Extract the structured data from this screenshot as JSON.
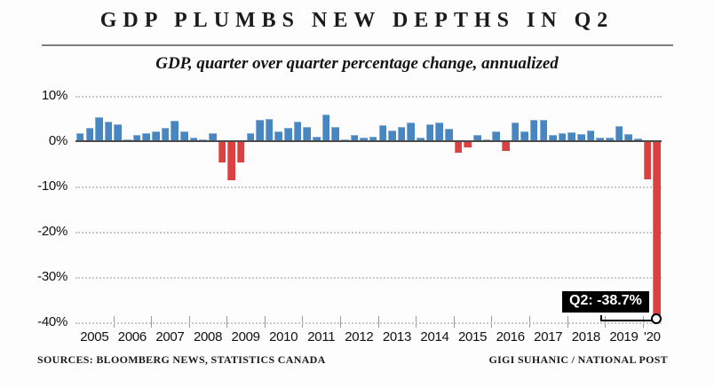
{
  "header": {
    "title": "GDP PLUMBS NEW DEPTHS IN Q2",
    "subtitle": "GDP, quarter over quarter percentage change, annualized"
  },
  "footer": {
    "sources": "SOURCES: BLOOMBERG NEWS, STATISTICS CANADA",
    "credit": "GIGI SUHANIC / NATIONAL POST"
  },
  "chart_data": {
    "type": "bar",
    "title": "GDP PLUMBS NEW DEPTHS IN Q2",
    "subtitle": "GDP, quarter over quarter percentage change, annualized",
    "unit": "percent, quarter over quarter annualized",
    "frequency": "quarterly",
    "start_quarter": "2005 Q1",
    "end_quarter": "2020 Q2",
    "ylim": [
      -40,
      10
    ],
    "y_ticks": [
      10,
      0,
      -10,
      -20,
      -30,
      -40
    ],
    "y_tick_labels": [
      "10%",
      "0%",
      "-10%",
      "-20%",
      "-30%",
      "-40%"
    ],
    "x_year_labels": [
      "2005",
      "2006",
      "2007",
      "2008",
      "2009",
      "2010",
      "2011",
      "2012",
      "2013",
      "2014",
      "2015",
      "2016",
      "2017",
      "2018",
      "2019",
      "'20"
    ],
    "values": [
      1.8,
      3.0,
      5.2,
      4.4,
      3.7,
      0.3,
      1.3,
      1.7,
      2.2,
      3.0,
      4.5,
      2.1,
      0.8,
      0.4,
      1.7,
      -4.8,
      -8.7,
      -4.8,
      1.8,
      4.7,
      4.9,
      2.1,
      2.9,
      4.4,
      3.1,
      0.9,
      5.8,
      3.2,
      0.3,
      1.3,
      0.7,
      1.0,
      3.5,
      2.4,
      3.1,
      4.1,
      0.7,
      3.7,
      4.1,
      2.7,
      -2.5,
      -1.3,
      1.3,
      0.3,
      2.2,
      -2.2,
      4.1,
      2.2,
      4.8,
      4.7,
      1.3,
      1.7,
      2.0,
      1.5,
      2.4,
      0.7,
      0.7,
      3.3,
      1.5,
      0.5,
      -8.5,
      -38.7
    ],
    "annotation": {
      "label": "Q2: -38.7%",
      "quarter": "2020 Q2",
      "value": -38.7
    },
    "colors": {
      "positive": "#4886c2",
      "negative": "#dc4141",
      "zero_line": "#4a4a4a",
      "callout_bg": "#000000",
      "callout_text": "#ffffff"
    },
    "grid": "horizontal dotted",
    "legend": "none"
  }
}
